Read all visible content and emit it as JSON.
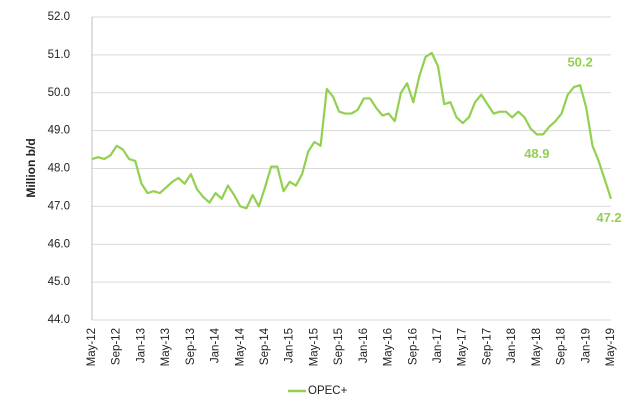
{
  "chart_data": {
    "type": "line",
    "y_label": "Million b/d",
    "categories": [
      "May-12",
      null,
      null,
      null,
      "Sep-12",
      null,
      null,
      null,
      "Jan-13",
      null,
      null,
      null,
      "May-13",
      null,
      null,
      null,
      "Sep-13",
      null,
      null,
      null,
      "Jan-14",
      null,
      null,
      null,
      "May-14",
      null,
      null,
      null,
      "Sep-14",
      null,
      null,
      null,
      "Jan-15",
      null,
      null,
      null,
      "May-15",
      null,
      null,
      null,
      "Sep-15",
      null,
      null,
      null,
      "Jan-16",
      null,
      null,
      null,
      "May-16",
      null,
      null,
      null,
      "Sep-16",
      null,
      null,
      null,
      "Jan-17",
      null,
      null,
      null,
      "May-17",
      null,
      null,
      null,
      "Sep-17",
      null,
      null,
      null,
      "Jan-18",
      null,
      null,
      null,
      "May-18",
      null,
      null,
      null,
      "Sep-18",
      null,
      null,
      null,
      "Jan-19",
      null,
      null,
      null,
      "May-19"
    ],
    "series": [
      {
        "name": "OPEC+",
        "color": "#92d050",
        "values": [
          48.25,
          48.3,
          48.25,
          48.35,
          48.6,
          48.5,
          48.25,
          48.2,
          47.6,
          47.35,
          47.4,
          47.35,
          47.5,
          47.65,
          47.75,
          47.6,
          47.85,
          47.45,
          47.25,
          47.1,
          47.35,
          47.2,
          47.55,
          47.3,
          47.0,
          46.95,
          47.3,
          47.0,
          47.5,
          48.05,
          48.05,
          47.4,
          47.65,
          47.55,
          47.85,
          48.45,
          48.7,
          48.6,
          50.1,
          49.9,
          49.5,
          49.45,
          49.45,
          49.55,
          49.85,
          49.85,
          49.6,
          49.4,
          49.45,
          49.25,
          50.0,
          50.25,
          49.75,
          50.45,
          50.95,
          51.05,
          50.7,
          49.7,
          49.75,
          49.35,
          49.2,
          49.35,
          49.75,
          49.95,
          49.7,
          49.45,
          49.5,
          49.5,
          49.35,
          49.5,
          49.35,
          49.05,
          48.9,
          48.9,
          49.1,
          49.25,
          49.45,
          49.95,
          50.15,
          50.2,
          49.6,
          48.6,
          48.2,
          47.7,
          47.2
        ],
        "value_labels": [
          null,
          null,
          null,
          null,
          null,
          null,
          null,
          null,
          null,
          null,
          null,
          null,
          null,
          null,
          null,
          null,
          null,
          null,
          null,
          null,
          null,
          null,
          null,
          null,
          null,
          null,
          null,
          null,
          null,
          null,
          null,
          null,
          null,
          null,
          null,
          null,
          null,
          null,
          null,
          null,
          null,
          null,
          null,
          null,
          null,
          null,
          null,
          null,
          null,
          null,
          null,
          null,
          null,
          null,
          null,
          null,
          null,
          null,
          null,
          null,
          null,
          null,
          null,
          null,
          null,
          null,
          null,
          null,
          null,
          null,
          null,
          null,
          "48.9",
          null,
          null,
          null,
          null,
          null,
          null,
          "50.2",
          null,
          null,
          null,
          null,
          "47.2"
        ]
      }
    ],
    "ylim": [
      44,
      52
    ],
    "yticks": [
      {
        "value": 44,
        "label": "44.0"
      },
      {
        "value": 45,
        "label": "45.0"
      },
      {
        "value": 46,
        "label": "46.0"
      },
      {
        "value": 47,
        "label": "47.0"
      },
      {
        "value": 48,
        "label": "48.0"
      },
      {
        "value": 49,
        "label": "49.0"
      },
      {
        "value": 50,
        "label": "50.0"
      },
      {
        "value": 51,
        "label": "51.0"
      },
      {
        "value": 52,
        "label": "52.0"
      }
    ],
    "grid": true,
    "legend": "bottom"
  }
}
